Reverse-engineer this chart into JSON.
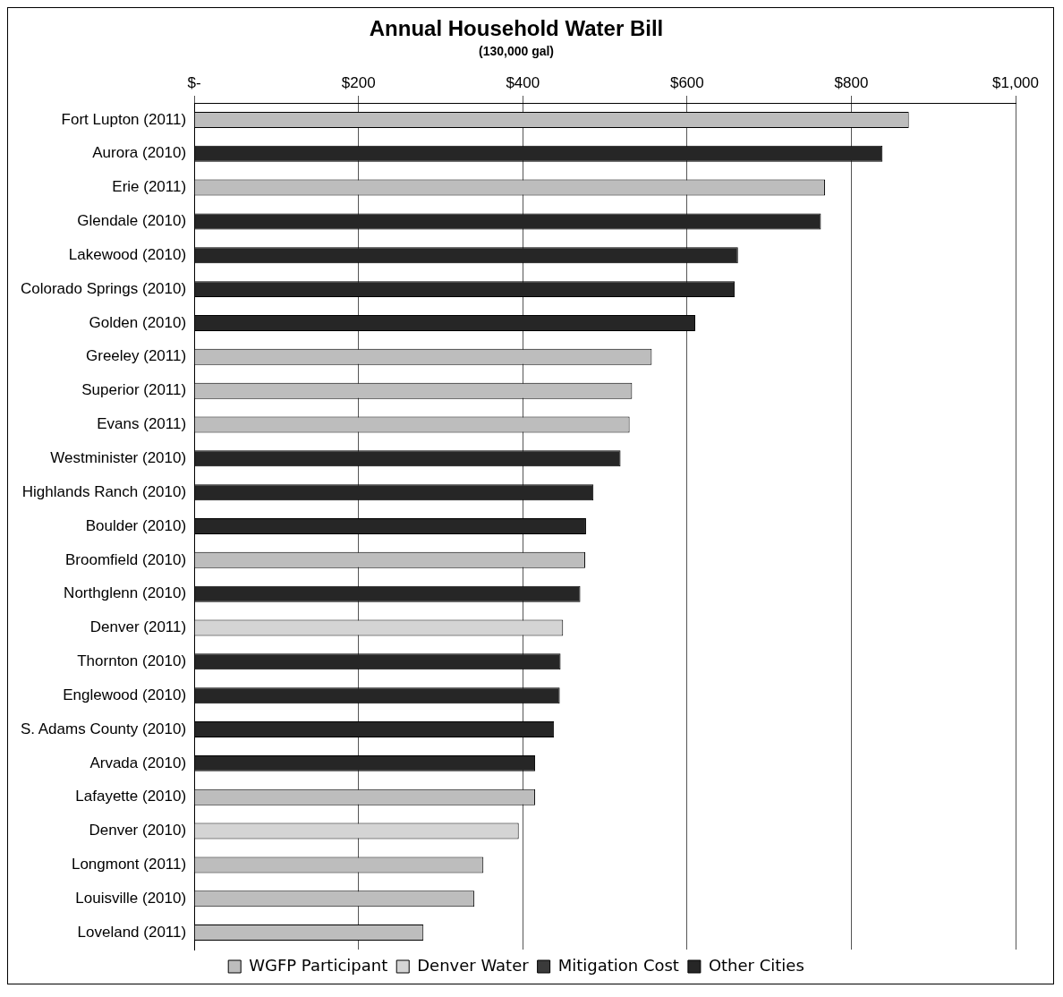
{
  "chart_data": {
    "type": "bar",
    "orientation": "horizontal",
    "title": "Annual Household Water Bill",
    "subtitle": "(130,000 gal)",
    "categories": [
      "Fort Lupton (2011)",
      "Aurora (2010)",
      "Erie (2011)",
      "Glendale (2010)",
      "Lakewood (2010)",
      "Colorado Springs (2010)",
      "Golden (2010)",
      "Greeley (2011)",
      "Superior (2011)",
      "Evans (2011)",
      "Westminister (2010)",
      "Highlands Ranch (2010)",
      "Boulder (2010)",
      "Broomfield (2010)",
      "Northglenn (2010)",
      "Denver (2011)",
      "Thornton (2010)",
      "Englewood (2010)",
      "S. Adams County (2010)",
      "Arvada (2010)",
      "Lafayette (2010)",
      "Denver (2010)",
      "Longmont (2011)",
      "Louisville (2010)",
      "Loveland (2011)"
    ],
    "series": [
      {
        "name": "WGFP Participant",
        "color": "#bdbdbd",
        "values": [
          870,
          null,
          768,
          null,
          null,
          null,
          null,
          557,
          533,
          530,
          null,
          null,
          null,
          476,
          null,
          null,
          null,
          null,
          null,
          null,
          415,
          null,
          352,
          341,
          279
        ]
      },
      {
        "name": "Denver Water",
        "color": "#d4d4d4",
        "values": [
          null,
          null,
          null,
          null,
          null,
          null,
          null,
          null,
          null,
          null,
          null,
          null,
          null,
          null,
          null,
          449,
          null,
          null,
          null,
          null,
          null,
          395,
          null,
          null,
          null
        ]
      },
      {
        "name": "Mitigation Cost",
        "color": "#3a3a3a",
        "values": [
          null,
          null,
          null,
          null,
          null,
          null,
          null,
          null,
          null,
          null,
          null,
          null,
          null,
          null,
          null,
          null,
          null,
          null,
          null,
          null,
          null,
          null,
          null,
          null,
          null
        ]
      },
      {
        "name": "Other Cities",
        "color": "#262626",
        "values": [
          null,
          838,
          null,
          763,
          662,
          658,
          610,
          null,
          null,
          null,
          519,
          486,
          477,
          null,
          470,
          null,
          446,
          445,
          438,
          415,
          null,
          null,
          null,
          null,
          null
        ]
      }
    ],
    "xlim": [
      0,
      1000
    ],
    "xticks": [
      {
        "value": 0,
        "label": "$-"
      },
      {
        "value": 200,
        "label": "$200"
      },
      {
        "value": 400,
        "label": "$400"
      },
      {
        "value": 600,
        "label": "$600"
      },
      {
        "value": 800,
        "label": "$800"
      },
      {
        "value": 1000,
        "label": "$1,000"
      }
    ],
    "grid": "x",
    "legend": "bottom"
  }
}
